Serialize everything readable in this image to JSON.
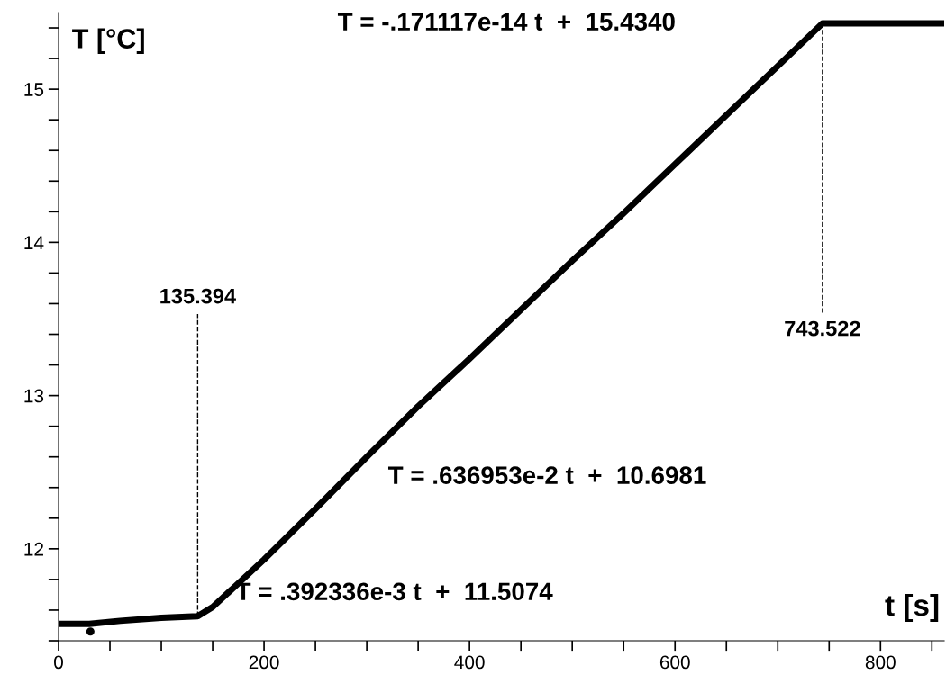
{
  "chart_data": {
    "type": "line",
    "xlabel": "t [s]",
    "ylabel": "T [°C]",
    "x": [
      0,
      30,
      60,
      100,
      135.394,
      150,
      200,
      250,
      300,
      350,
      400,
      450,
      500,
      550,
      600,
      650,
      700,
      743.522,
      862
    ],
    "series": [
      {
        "color": "#000000",
        "values": [
          11.51,
          11.51,
          11.53,
          11.55,
          11.56,
          11.62,
          11.93,
          12.26,
          12.6,
          12.93,
          13.24,
          13.56,
          13.88,
          14.19,
          14.51,
          14.83,
          15.15,
          15.43,
          15.43
        ]
      },
      {
        "type": "scatter",
        "color": "#000000",
        "x": [
          31
        ],
        "values": [
          11.46
        ]
      }
    ],
    "xlim": [
      0,
      862
    ],
    "ylim": [
      11.4,
      15.5
    ],
    "xticks": [
      0,
      {
        "value": 50,
        "label": null
      },
      {
        "value": 100,
        "label": null
      },
      {
        "value": 150,
        "label": null
      },
      200,
      {
        "value": 250,
        "label": null
      },
      {
        "value": 300,
        "label": null
      },
      {
        "value": 350,
        "label": null
      },
      400,
      {
        "value": 450,
        "label": null
      },
      {
        "value": 500,
        "label": null
      },
      {
        "value": 550,
        "label": null
      },
      600,
      {
        "value": 650,
        "label": null
      },
      {
        "value": 700,
        "label": null
      },
      {
        "value": 750,
        "label": null
      },
      800,
      {
        "value": 850,
        "label": null
      }
    ],
    "yticks": [
      {
        "value": 11.4,
        "label": null
      },
      {
        "value": 11.6,
        "label": null
      },
      {
        "value": 11.8,
        "label": null
      },
      12,
      {
        "value": 12.2,
        "label": null
      },
      {
        "value": 12.4,
        "label": null
      },
      {
        "value": 12.6,
        "label": null
      },
      {
        "value": 12.8,
        "label": null
      },
      13,
      {
        "value": 13.2,
        "label": null
      },
      {
        "value": 13.4,
        "label": null
      },
      {
        "value": 13.6,
        "label": null
      },
      {
        "value": 13.8,
        "label": null
      },
      14,
      {
        "value": 14.2,
        "label": null
      },
      {
        "value": 14.4,
        "label": null
      },
      {
        "value": 14.6,
        "label": null
      },
      {
        "value": 14.8,
        "label": null
      },
      15,
      {
        "value": 15.2,
        "label": null
      },
      {
        "value": 15.4,
        "label": null
      }
    ],
    "ref_lines": [
      {
        "axis": "x",
        "value": 135.394,
        "label": "135.394",
        "line_style": "dashed",
        "color": "#000000"
      },
      {
        "axis": "x",
        "value": 743.522,
        "label": "743.522",
        "line_style": "dashed",
        "color": "#000000"
      }
    ],
    "annotations": [
      "T = -.171117e-14 t  +  15.4340",
      "T = .636953e-2 t  +  10.6981",
      "T = .392336e-3 t  +  11.5074"
    ],
    "grid": false,
    "legend": false
  }
}
